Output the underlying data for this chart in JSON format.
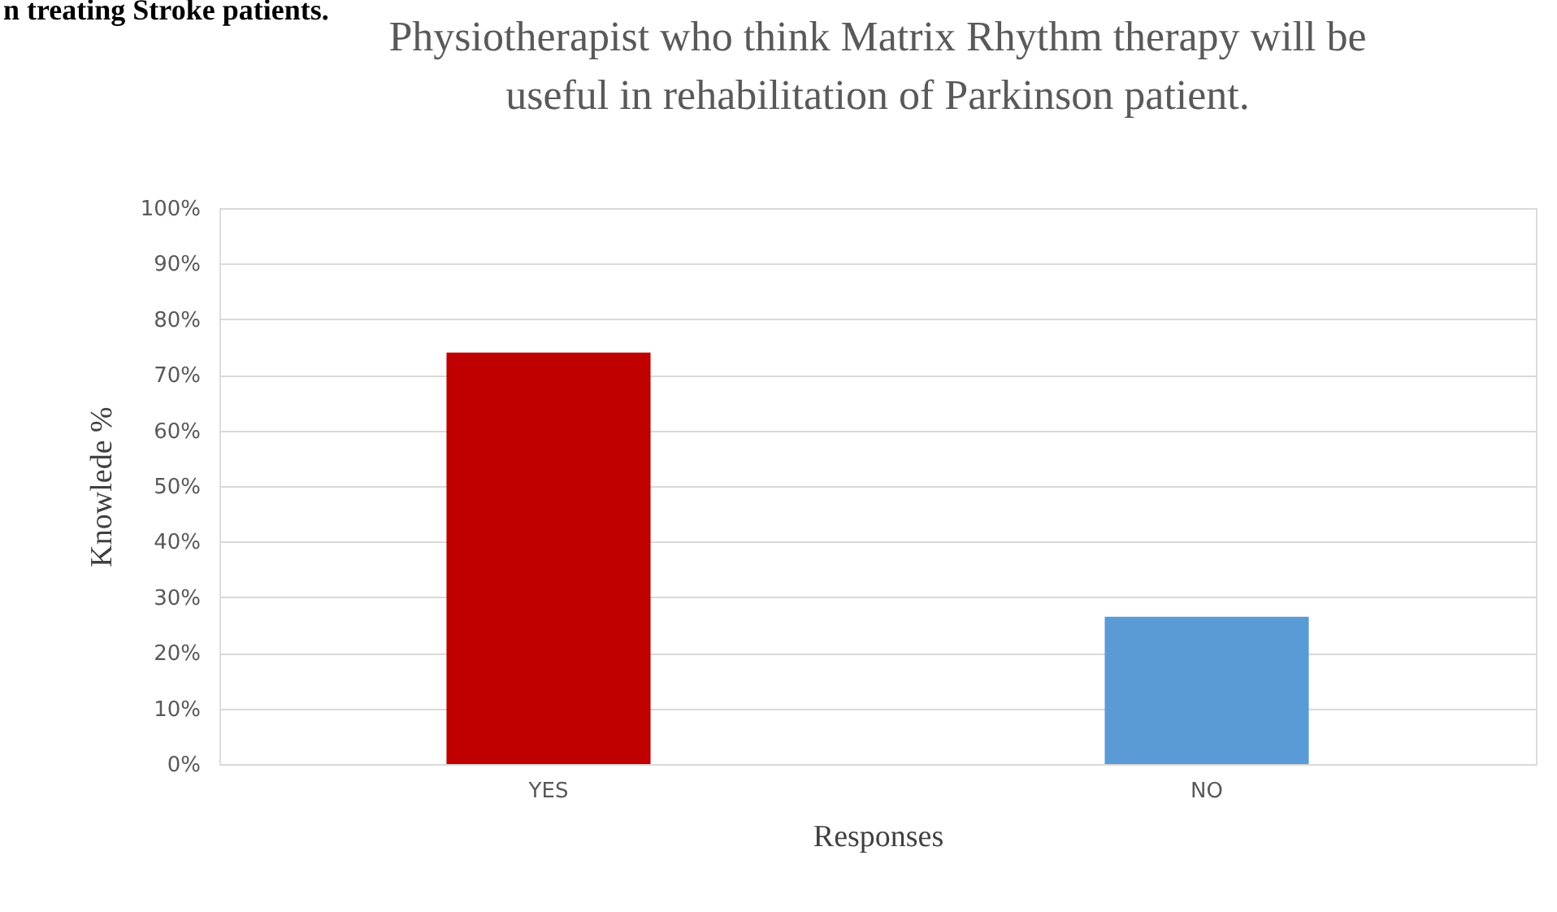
{
  "chart_data": {
    "type": "bar",
    "title": "Physiotherapist who  think Matrix Rhythm therapy will be useful in rehabilitation of Parkinson patient.",
    "xlabel": "Responses",
    "ylabel": "Knowlede %",
    "categories": [
      "YES",
      "NO"
    ],
    "values": [
      74,
      26.5
    ],
    "colors": [
      "#c00000",
      "#5b9bd5"
    ],
    "ylim": [
      0,
      100
    ],
    "yticks": [
      {
        "value": 0,
        "label": "0%"
      },
      {
        "value": 10,
        "label": "10%"
      },
      {
        "value": 20,
        "label": "20%"
      },
      {
        "value": 30,
        "label": "30%"
      },
      {
        "value": 40,
        "label": "40%"
      },
      {
        "value": 50,
        "label": "50%"
      },
      {
        "value": 60,
        "label": "60%"
      },
      {
        "value": 70,
        "label": "70%"
      },
      {
        "value": 80,
        "label": "80%"
      },
      {
        "value": 90,
        "label": "90%"
      },
      {
        "value": 100,
        "label": "100%"
      }
    ],
    "grid": "y",
    "legend": false,
    "annotations": [
      "n treating Stroke patients."
    ]
  }
}
